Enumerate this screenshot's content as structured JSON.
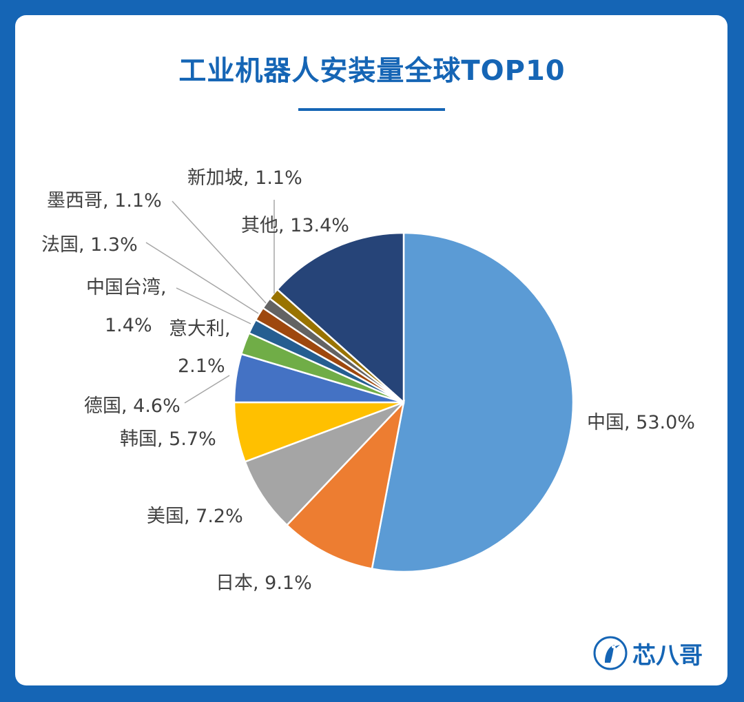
{
  "title": "工业机器人安装量全球TOP10",
  "brand": {
    "name": "芯八哥"
  },
  "chart_data": {
    "type": "pie",
    "title": "工业机器人安装量全球TOP10",
    "unit": "%",
    "slices": [
      {
        "label": "中国",
        "value": 53.0,
        "color": "#5b9bd5"
      },
      {
        "label": "日本",
        "value": 9.1,
        "color": "#ed7d31"
      },
      {
        "label": "美国",
        "value": 7.2,
        "color": "#a5a5a5"
      },
      {
        "label": "韩国",
        "value": 5.7,
        "color": "#ffc000"
      },
      {
        "label": "德国",
        "value": 4.6,
        "color": "#4472c4"
      },
      {
        "label": "意大利",
        "value": 2.1,
        "color": "#70ad47"
      },
      {
        "label": "中国台湾",
        "value": 1.4,
        "color": "#255e91"
      },
      {
        "label": "法国",
        "value": 1.3,
        "color": "#9e480e"
      },
      {
        "label": "墨西哥",
        "value": 1.1,
        "color": "#636363"
      },
      {
        "label": "新加坡",
        "value": 1.1,
        "color": "#997300"
      },
      {
        "label": "其他",
        "value": 13.4,
        "color": "#264478"
      }
    ]
  }
}
